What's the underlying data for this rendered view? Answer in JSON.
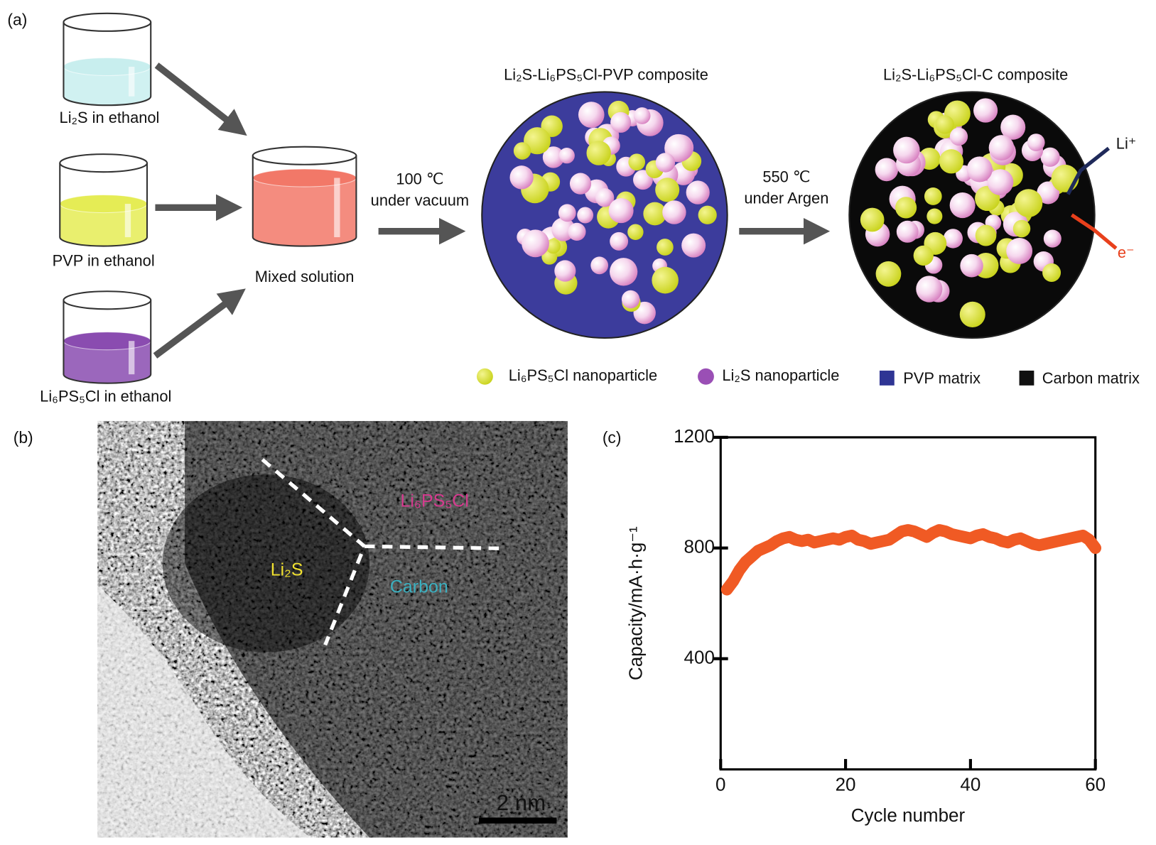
{
  "panel_labels": {
    "a": "(a)",
    "b": "(b)",
    "c": "(c)"
  },
  "diagram": {
    "beakers": [
      "Li₂S in ethanol",
      "PVP in ethanol",
      "Li₆PS₅Cl in ethanol"
    ],
    "mixed": "Mixed solution",
    "step1": [
      "100 ℃",
      "under vacuum"
    ],
    "step2": [
      "550 ℃",
      "under Argen"
    ],
    "composite1": "Li₂S-Li₆PS₅Cl-PVP composite",
    "composite2": "Li₂S-Li₆PS₅Cl-C composite",
    "li_ion": "Li⁺",
    "electron": "e⁻",
    "legend": [
      "Li₆PS₅Cl nanoparticle",
      "Li₂S nanoparticle",
      "PVP matrix",
      "Carbon matrix"
    ]
  },
  "tem": {
    "labels": [
      "Li₆PS₅Cl",
      "Li₂S",
      "Carbon"
    ],
    "scale_bar": "2 nm"
  },
  "chart_data": {
    "type": "line",
    "x_label": "Cycle number",
    "y_label": "Capacity/mA·h·g⁻¹",
    "x": [
      1,
      2,
      3,
      4,
      5,
      6,
      7,
      8,
      9,
      10,
      11,
      12,
      13,
      14,
      15,
      16,
      17,
      18,
      19,
      20,
      21,
      22,
      23,
      24,
      25,
      26,
      27,
      28,
      29,
      30,
      31,
      32,
      33,
      34,
      35,
      36,
      37,
      38,
      39,
      40,
      41,
      42,
      43,
      44,
      45,
      46,
      47,
      48,
      49,
      50,
      51,
      52,
      53,
      54,
      55,
      56,
      57,
      58,
      59,
      60
    ],
    "series": [
      {
        "name": "Capacity",
        "color": "#f05a24",
        "values": [
          650,
          680,
          720,
          750,
          770,
          790,
          800,
          810,
          825,
          835,
          840,
          830,
          825,
          830,
          820,
          825,
          830,
          835,
          830,
          840,
          845,
          830,
          825,
          815,
          820,
          825,
          830,
          845,
          860,
          865,
          860,
          850,
          840,
          855,
          865,
          860,
          850,
          845,
          840,
          835,
          845,
          850,
          840,
          835,
          825,
          820,
          830,
          835,
          825,
          815,
          810,
          815,
          820,
          825,
          830,
          835,
          840,
          845,
          830,
          800
        ]
      }
    ],
    "xlim": [
      0,
      60
    ],
    "ylim": [
      0,
      1200
    ],
    "xticks": [
      0,
      20,
      40,
      60
    ],
    "yticks": [
      400,
      800,
      1200
    ]
  }
}
